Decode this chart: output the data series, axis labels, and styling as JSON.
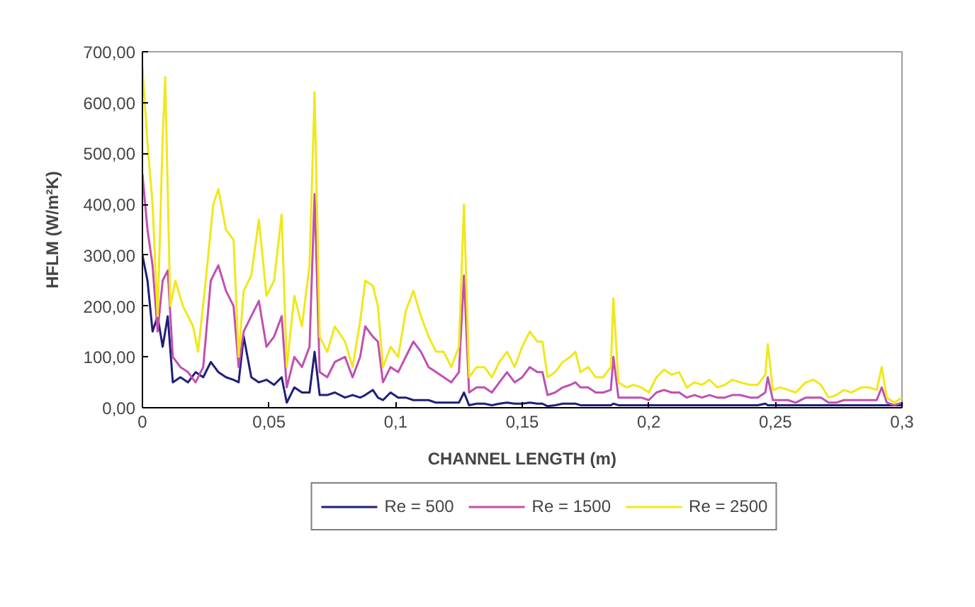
{
  "chart_data": {
    "type": "line",
    "xlabel": "CHANNEL LENGTH (m)",
    "ylabel": "HFLM (W/m²K)",
    "xlim": [
      0,
      0.3
    ],
    "ylim": [
      0,
      700
    ],
    "xticks": [
      0,
      {
        "value": 0.05,
        "label": "0,05"
      },
      {
        "value": 0.1,
        "label": "0,1"
      },
      {
        "value": 0.15,
        "label": "0,15"
      },
      {
        "value": 0.2,
        "label": "0,2"
      },
      {
        "value": 0.25,
        "label": "0,25"
      },
      {
        "value": 0.3,
        "label": "0,3"
      }
    ],
    "yticks": [
      {
        "value": 0,
        "label": "0,00"
      },
      {
        "value": 100,
        "label": "100,00"
      },
      {
        "value": 200,
        "label": "200,00"
      },
      {
        "value": 300,
        "label": "300,00"
      },
      {
        "value": 400,
        "label": "400,00"
      },
      {
        "value": 500,
        "label": "500,00"
      },
      {
        "value": 600,
        "label": "600,00"
      },
      {
        "value": 700,
        "label": "700,00"
      }
    ],
    "x": [
      0,
      0.002,
      0.004,
      0.006,
      0.008,
      0.01,
      0.012,
      0.015,
      0.018,
      0.021,
      0.024,
      0.027,
      0.03,
      0.033,
      0.036,
      0.038,
      0.04,
      0.043,
      0.046,
      0.049,
      0.052,
      0.055,
      0.057,
      0.06,
      0.063,
      0.066,
      0.068,
      0.07,
      0.073,
      0.076,
      0.08,
      0.083,
      0.086,
      0.088,
      0.091,
      0.093,
      0.095,
      0.098,
      0.101,
      0.104,
      0.107,
      0.11,
      0.113,
      0.116,
      0.119,
      0.122,
      0.125,
      0.127,
      0.129,
      0.132,
      0.135,
      0.138,
      0.141,
      0.144,
      0.147,
      0.15,
      0.153,
      0.156,
      0.158,
      0.16,
      0.163,
      0.166,
      0.169,
      0.171,
      0.173,
      0.176,
      0.179,
      0.182,
      0.185,
      0.186,
      0.188,
      0.191,
      0.194,
      0.197,
      0.2,
      0.203,
      0.206,
      0.209,
      0.212,
      0.215,
      0.218,
      0.221,
      0.224,
      0.227,
      0.23,
      0.233,
      0.236,
      0.24,
      0.243,
      0.246,
      0.247,
      0.249,
      0.252,
      0.255,
      0.258,
      0.262,
      0.265,
      0.268,
      0.271,
      0.274,
      0.277,
      0.28,
      0.284,
      0.287,
      0.29,
      0.292,
      0.294,
      0.297,
      0.3
    ],
    "series": [
      {
        "name": "Re = 500",
        "color": "#1f1f7a",
        "values": [
          300,
          250,
          150,
          180,
          120,
          180,
          50,
          60,
          50,
          70,
          60,
          90,
          70,
          60,
          55,
          50,
          140,
          60,
          50,
          55,
          45,
          60,
          10,
          40,
          30,
          30,
          110,
          25,
          25,
          30,
          20,
          25,
          20,
          25,
          35,
          20,
          15,
          30,
          20,
          20,
          15,
          15,
          15,
          10,
          10,
          10,
          10,
          30,
          5,
          8,
          8,
          5,
          8,
          10,
          8,
          8,
          10,
          8,
          8,
          3,
          5,
          8,
          8,
          8,
          5,
          5,
          5,
          5,
          5,
          8,
          5,
          5,
          5,
          5,
          5,
          5,
          5,
          5,
          5,
          5,
          5,
          5,
          5,
          5,
          5,
          5,
          5,
          5,
          5,
          8,
          5,
          5,
          5,
          5,
          5,
          5,
          5,
          5,
          5,
          5,
          5,
          5,
          5,
          5,
          5,
          5,
          5,
          5,
          5
        ]
      },
      {
        "name": "Re = 1500",
        "color": "#c050b0",
        "values": [
          460,
          350,
          280,
          150,
          250,
          270,
          100,
          80,
          70,
          50,
          80,
          250,
          280,
          230,
          200,
          80,
          150,
          180,
          210,
          120,
          140,
          180,
          40,
          100,
          80,
          120,
          420,
          70,
          60,
          90,
          100,
          60,
          100,
          160,
          140,
          130,
          50,
          80,
          70,
          100,
          130,
          110,
          80,
          70,
          60,
          50,
          70,
          260,
          30,
          40,
          40,
          30,
          50,
          70,
          50,
          60,
          80,
          70,
          70,
          25,
          30,
          40,
          45,
          50,
          40,
          40,
          30,
          30,
          35,
          100,
          20,
          20,
          20,
          20,
          15,
          30,
          35,
          30,
          30,
          20,
          25,
          20,
          25,
          20,
          20,
          25,
          25,
          20,
          20,
          30,
          60,
          15,
          15,
          15,
          10,
          20,
          20,
          20,
          10,
          10,
          15,
          15,
          15,
          15,
          15,
          40,
          10,
          5,
          10
        ]
      },
      {
        "name": "Re = 2500",
        "color": "#f0e81a",
        "x": [
          0,
          0.002,
          0.004,
          0.006,
          0.008,
          0.009,
          0.011,
          0.013,
          0.016,
          0.02,
          0.022,
          0.025,
          0.028,
          0.03,
          0.033,
          0.036,
          0.038,
          0.04,
          0.043,
          0.046,
          0.049,
          0.052,
          0.055,
          0.057,
          0.06,
          0.063,
          0.066,
          0.068,
          0.07,
          0.073,
          0.076,
          0.08,
          0.083,
          0.086,
          0.088,
          0.091,
          0.093,
          0.095,
          0.098,
          0.101,
          0.104,
          0.107,
          0.11,
          0.113,
          0.116,
          0.119,
          0.122,
          0.125,
          0.127,
          0.129,
          0.132,
          0.135,
          0.138,
          0.141,
          0.144,
          0.147,
          0.15,
          0.153,
          0.156,
          0.158,
          0.16,
          0.163,
          0.166,
          0.169,
          0.171,
          0.173,
          0.176,
          0.179,
          0.182,
          0.185,
          0.186,
          0.188,
          0.191,
          0.194,
          0.197,
          0.2,
          0.203,
          0.206,
          0.209,
          0.212,
          0.215,
          0.218,
          0.221,
          0.224,
          0.227,
          0.23,
          0.233,
          0.236,
          0.24,
          0.243,
          0.246,
          0.247,
          0.249,
          0.252,
          0.255,
          0.258,
          0.262,
          0.265,
          0.268,
          0.271,
          0.274,
          0.277,
          0.28,
          0.284,
          0.287,
          0.29,
          0.292,
          0.294,
          0.297,
          0.3
        ],
        "values": [
          670,
          520,
          400,
          180,
          530,
          650,
          200,
          250,
          200,
          160,
          110,
          250,
          400,
          430,
          350,
          330,
          100,
          230,
          260,
          370,
          220,
          250,
          380,
          80,
          220,
          160,
          280,
          620,
          140,
          110,
          160,
          130,
          80,
          170,
          250,
          240,
          200,
          80,
          120,
          100,
          190,
          230,
          180,
          140,
          110,
          110,
          80,
          120,
          400,
          60,
          80,
          80,
          60,
          90,
          110,
          80,
          120,
          150,
          130,
          130,
          60,
          70,
          90,
          100,
          110,
          70,
          80,
          60,
          60,
          80,
          215,
          50,
          40,
          45,
          40,
          30,
          60,
          75,
          65,
          70,
          40,
          50,
          45,
          55,
          40,
          45,
          55,
          50,
          45,
          45,
          65,
          125,
          35,
          40,
          35,
          30,
          50,
          55,
          45,
          20,
          25,
          35,
          30,
          40,
          40,
          35,
          80,
          20,
          10,
          20
        ]
      }
    ],
    "grid": false,
    "legend": "bottom",
    "marker": "none",
    "line_style": "solid"
  }
}
